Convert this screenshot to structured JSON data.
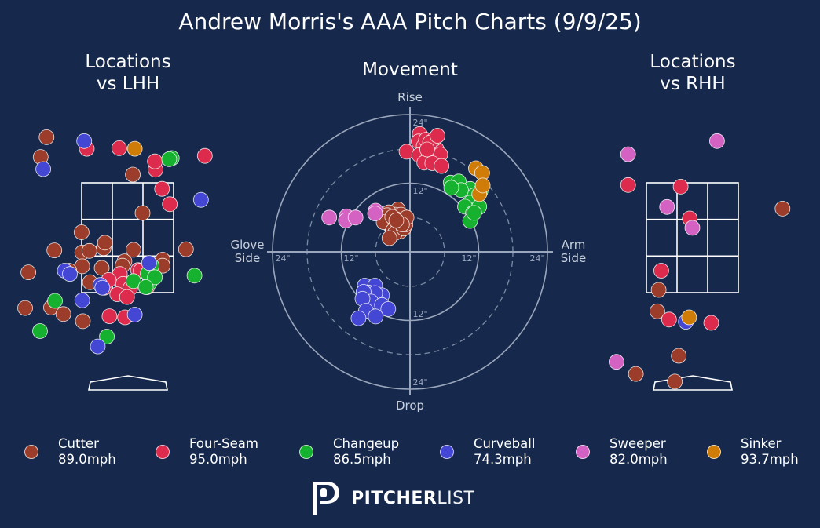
{
  "title": "Andrew Morris's AAA Pitch Charts (9/9/25)",
  "panels": {
    "lhh_line1": "Locations",
    "lhh_line2": "vs LHH",
    "movement": "Movement",
    "rhh_line1": "Locations",
    "rhh_line2": "vs RHH"
  },
  "movement_axes": {
    "top": "Rise",
    "bottom": "Drop",
    "left_line1": "Glove",
    "left_line2": "Side",
    "right_line1": "Arm",
    "right_line2": "Side",
    "ticks": [
      "24\"",
      "12\"",
      "12\"",
      "24\"",
      "24\"",
      "12\"",
      "12\"",
      "24\""
    ]
  },
  "logo": {
    "bold": "PITCHER",
    "light": "LIST"
  },
  "chart_data": [
    {
      "type": "legend",
      "entries": [
        {
          "pitch": "Cutter",
          "velo": "89.0mph",
          "color": "#9b3d2a"
        },
        {
          "pitch": "Four-Seam",
          "velo": "95.0mph",
          "color": "#dc2b4c"
        },
        {
          "pitch": "Changeup",
          "velo": "86.5mph",
          "color": "#16b12e"
        },
        {
          "pitch": "Curveball",
          "velo": "74.3mph",
          "color": "#4446d4"
        },
        {
          "pitch": "Sweeper",
          "velo": "82.0mph",
          "color": "#d362c2"
        },
        {
          "pitch": "Sinker",
          "velo": "93.7mph",
          "color": "#cf7d08"
        }
      ]
    },
    {
      "type": "scatter",
      "title": "Locations vs LHH",
      "x_unit": "plate horizontal location (ft)",
      "y_unit": "plate height (ft)",
      "series": [
        {
          "name": "Cutter",
          "points": [
            [
              -1.25,
              4.33
            ],
            [
              -1.34,
              3.97
            ],
            [
              -0.71,
              2.6
            ],
            [
              -1.13,
              2.27
            ],
            [
              -0.37,
              2.31
            ],
            [
              -0.35,
              2.41
            ],
            [
              -0.05,
              2.07
            ],
            [
              0.09,
              2.28
            ],
            [
              -0.7,
              2.23
            ],
            [
              -0.59,
              2.26
            ],
            [
              -0.7,
              1.98
            ],
            [
              0.54,
              2.1
            ],
            [
              -1.53,
              1.87
            ],
            [
              -0.58,
              1.69
            ],
            [
              -1.58,
              1.22
            ],
            [
              -1.18,
              1.23
            ],
            [
              -0.99,
              1.11
            ],
            [
              -0.69,
              0.98
            ],
            [
              0.08,
              3.65
            ],
            [
              0.23,
              2.95
            ],
            [
              0.9,
              2.29
            ],
            [
              0.54,
              1.99
            ],
            [
              -0.08,
              1.99
            ],
            [
              -0.4,
              1.95
            ],
            [
              -0.9,
              1.9
            ],
            [
              0.3,
              1.6
            ]
          ]
        },
        {
          "name": "Four-Seam",
          "points": [
            [
              -0.63,
              4.12
            ],
            [
              -0.13,
              4.13
            ],
            [
              1.19,
              3.99
            ],
            [
              0.43,
              3.74
            ],
            [
              0.42,
              3.89
            ],
            [
              0.53,
              3.39
            ],
            [
              0.65,
              3.11
            ],
            [
              0.16,
              1.91
            ],
            [
              -0.12,
              1.84
            ],
            [
              -0.07,
              1.66
            ],
            [
              0.04,
              1.58
            ],
            [
              -0.36,
              1.59
            ],
            [
              -0.29,
              1.73
            ],
            [
              -0.16,
              1.47
            ],
            [
              -0.01,
              1.42
            ],
            [
              -0.28,
              1.07
            ],
            [
              -0.04,
              1.05
            ],
            [
              0.2,
              1.9
            ]
          ]
        },
        {
          "name": "Changeup",
          "points": [
            [
              0.68,
              3.95
            ],
            [
              0.64,
              3.93
            ],
            [
              0.37,
              1.99
            ],
            [
              0.34,
              1.68
            ],
            [
              0.31,
              1.85
            ],
            [
              0.42,
              1.78
            ],
            [
              0.09,
              1.71
            ],
            [
              1.03,
              1.81
            ],
            [
              -1.12,
              1.35
            ],
            [
              -1.35,
              0.8
            ],
            [
              -0.32,
              0.7
            ],
            [
              0.28,
              1.6
            ]
          ]
        },
        {
          "name": "Curveball",
          "points": [
            [
              -0.67,
              4.26
            ],
            [
              -1.3,
              3.75
            ],
            [
              1.13,
              3.19
            ],
            [
              0.33,
              2.04
            ],
            [
              -0.97,
              1.9
            ],
            [
              -0.89,
              1.84
            ],
            [
              -0.42,
              1.64
            ],
            [
              -0.39,
              1.59
            ],
            [
              -0.7,
              1.36
            ],
            [
              0.11,
              1.1
            ],
            [
              -0.46,
              0.52
            ]
          ]
        },
        {
          "name": "Sweeper",
          "points": []
        },
        {
          "name": "Sinker",
          "points": [
            [
              0.11,
              4.12
            ]
          ]
        }
      ]
    },
    {
      "type": "scatter",
      "title": "Movement",
      "x_unit": "horizontal break (in), arm side positive",
      "y_unit": "induced vertical break (in)",
      "xlim": [
        -24,
        24
      ],
      "ylim": [
        -24,
        24
      ],
      "series": [
        {
          "name": "Cutter",
          "points": [
            [
              -2.1,
              7.4
            ],
            [
              -3.1,
              5.2
            ],
            [
              -2.6,
              6.5
            ],
            [
              -1.6,
              6.5
            ],
            [
              -2.4,
              5.7
            ],
            [
              -3.4,
              4.6
            ],
            [
              -2.3,
              4.8
            ],
            [
              -3.7,
              6.9
            ],
            [
              -3.6,
              4.8
            ],
            [
              -3.2,
              4.5
            ],
            [
              -1.6,
              5.5
            ],
            [
              -1.7,
              3.6
            ],
            [
              -4.0,
              6.4
            ],
            [
              -4.6,
              5.2
            ],
            [
              -2.8,
              5.8
            ],
            [
              -3.0,
              3.7
            ],
            [
              -2.6,
              3.3
            ],
            [
              -1.1,
              4.1
            ],
            [
              -0.8,
              4.8
            ],
            [
              -0.6,
              6.0
            ],
            [
              -1.4,
              4.8
            ],
            [
              -3.1,
              6.1
            ],
            [
              -2.4,
              5.5
            ],
            [
              -3.6,
              2.4
            ]
          ]
        },
        {
          "name": "Four-Seam",
          "points": [
            [
              1.7,
              20.6
            ],
            [
              1.5,
              19.3
            ],
            [
              2.4,
              18.5
            ],
            [
              2.2,
              17.0
            ],
            [
              3.2,
              16.5
            ],
            [
              3.9,
              18.9
            ],
            [
              4.6,
              18.0
            ],
            [
              5.3,
              17.0
            ],
            [
              -0.6,
              17.5
            ],
            [
              1.6,
              16.9
            ],
            [
              2.5,
              15.6
            ],
            [
              3.9,
              15.5
            ],
            [
              5.5,
              15.0
            ],
            [
              2.8,
              19.6
            ],
            [
              4.3,
              19.8
            ],
            [
              3.5,
              19.1
            ],
            [
              4.8,
              20.3
            ],
            [
              3.0,
              17.9
            ]
          ]
        },
        {
          "name": "Changeup",
          "points": [
            [
              7.1,
              12.1
            ],
            [
              8.5,
              12.3
            ],
            [
              10.5,
              11.0
            ],
            [
              12.3,
              10.6
            ],
            [
              11.3,
              9.9
            ],
            [
              8.9,
              10.8
            ],
            [
              7.2,
              11.2
            ],
            [
              10.5,
              8.6
            ],
            [
              12.0,
              7.8
            ],
            [
              9.6,
              7.9
            ],
            [
              11.0,
              6.8
            ],
            [
              12.1,
              7.9
            ],
            [
              10.5,
              5.4
            ],
            [
              11.2,
              6.8
            ]
          ]
        },
        {
          "name": "Curveball",
          "points": [
            [
              -7.9,
              -5.9
            ],
            [
              -6.1,
              -5.9
            ],
            [
              -7.3,
              -7.1
            ],
            [
              -4.9,
              -7.6
            ],
            [
              -6.1,
              -7.2
            ],
            [
              -8.1,
              -7.0
            ],
            [
              -6.8,
              -8.7
            ],
            [
              -8.3,
              -8.2
            ],
            [
              -4.9,
              -9.3
            ],
            [
              -7.7,
              -10.3
            ],
            [
              -3.8,
              -10.0
            ],
            [
              -6.0,
              -11.3
            ],
            [
              -9.0,
              -11.6
            ]
          ]
        },
        {
          "name": "Sweeper",
          "points": [
            [
              -14.1,
              6.0
            ],
            [
              -11.1,
              6.2
            ],
            [
              -11.2,
              5.5
            ],
            [
              -9.5,
              6.0
            ],
            [
              -6.0,
              7.2
            ],
            [
              -6.1,
              6.7
            ]
          ]
        },
        {
          "name": "Sinker",
          "points": [
            [
              11.5,
              14.6
            ],
            [
              12.6,
              13.8
            ],
            [
              12.1,
              10.1
            ],
            [
              12.7,
              11.6
            ]
          ]
        }
      ]
    },
    {
      "type": "scatter",
      "title": "Locations vs RHH",
      "x_unit": "plate horizontal location (ft)",
      "y_unit": "plate height (ft)",
      "series": [
        {
          "name": "Cutter",
          "points": [
            [
              1.39,
              3.03
            ],
            [
              -0.52,
              1.55
            ],
            [
              -0.54,
              1.16
            ],
            [
              -0.21,
              0.35
            ],
            [
              -0.87,
              0.02
            ],
            [
              -0.27,
              -0.12
            ]
          ]
        },
        {
          "name": "Four-Seam",
          "points": [
            [
              -0.99,
              3.46
            ],
            [
              -0.18,
              3.43
            ],
            [
              -0.04,
              2.85
            ],
            [
              -0.48,
              1.9
            ],
            [
              -0.36,
              1.01
            ],
            [
              0.29,
              0.95
            ]
          ]
        },
        {
          "name": "Changeup",
          "points": []
        },
        {
          "name": "Curveball",
          "points": [
            [
              -0.1,
              0.97
            ]
          ]
        },
        {
          "name": "Sweeper",
          "points": [
            [
              -0.99,
              4.02
            ],
            [
              0.38,
              4.26
            ],
            [
              -0.39,
              3.06
            ],
            [
              0.0,
              2.68
            ],
            [
              -1.17,
              0.24
            ]
          ]
        },
        {
          "name": "Sinker",
          "points": [
            [
              -0.05,
              1.05
            ]
          ]
        }
      ]
    }
  ]
}
